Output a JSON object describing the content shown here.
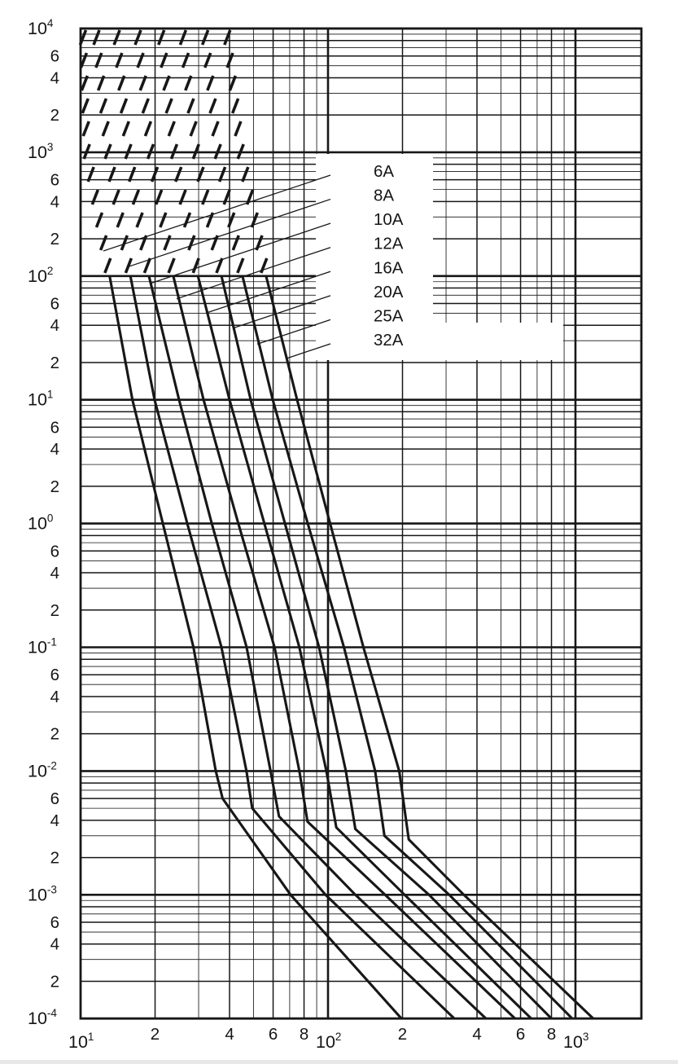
{
  "figure": {
    "kind": "scanned time-current characteristic chart",
    "background_color": "#ffffff",
    "ink_color": "#171717"
  },
  "legend": {
    "items": [
      "6A",
      "8A",
      "10A",
      "12A",
      "16A",
      "20A",
      "25A",
      "32A"
    ]
  },
  "chart_data": {
    "type": "line",
    "title": "",
    "xlabel": "",
    "ylabel": "",
    "x_axis": {
      "scale": "log",
      "major_tick_labels": [
        "10^1",
        "10^2",
        "10^3"
      ],
      "minor_tick_labels": [
        "2",
        "4",
        "6",
        "8"
      ],
      "range": [
        10,
        1950
      ]
    },
    "y_axis": {
      "scale": "log",
      "major_tick_labels": [
        "10^4",
        "10^3",
        "10^2",
        "10^1",
        "10^0",
        "10^-1",
        "10^-2",
        "10^-3",
        "10^-4"
      ],
      "minor_tick_labels": [
        "6",
        "4",
        "2"
      ],
      "range": [
        0.0001,
        10000
      ]
    },
    "grid": "log-log, minor lines 2-9 each decade",
    "dashed_above_seconds": 100,
    "series": [
      {
        "name": "6A",
        "points": [
          [
            10.2,
            10000
          ],
          [
            10.6,
            1000
          ],
          [
            13.1,
            100
          ],
          [
            16.2,
            10
          ],
          [
            21.5,
            1
          ],
          [
            28.6,
            0.1
          ],
          [
            35.2,
            0.01
          ],
          [
            37.5,
            0.006
          ],
          [
            70.6,
            0.001
          ],
          [
            198,
            0.0001
          ]
        ]
      },
      {
        "name": "8A",
        "points": [
          [
            11.5,
            10000
          ],
          [
            12.9,
            1000
          ],
          [
            15.9,
            100
          ],
          [
            19.9,
            10
          ],
          [
            27.0,
            1
          ],
          [
            37.1,
            0.1
          ],
          [
            46.8,
            0.01
          ],
          [
            49.4,
            0.005
          ],
          [
            97.7,
            0.001
          ],
          [
            324,
            0.0001
          ]
        ]
      },
      {
        "name": "10A",
        "points": [
          [
            13.9,
            10000
          ],
          [
            15.6,
            1000
          ],
          [
            18.9,
            100
          ],
          [
            25.0,
            10
          ],
          [
            33.9,
            1
          ],
          [
            46.9,
            0.1
          ],
          [
            58.6,
            0.01
          ],
          [
            63.4,
            0.0043
          ],
          [
            129,
            0.001
          ],
          [
            435,
            0.0001
          ]
        ]
      },
      {
        "name": "12A",
        "points": [
          [
            16.9,
            10000
          ],
          [
            19.2,
            1000
          ],
          [
            23.7,
            100
          ],
          [
            31.4,
            10
          ],
          [
            43.4,
            1
          ],
          [
            60.8,
            0.1
          ],
          [
            76.6,
            0.01
          ],
          [
            82.6,
            0.0039
          ],
          [
            170,
            0.001
          ],
          [
            570,
            0.0001
          ]
        ]
      },
      {
        "name": "16A",
        "points": [
          [
            21.0,
            10000
          ],
          [
            23.9,
            1000
          ],
          [
            29.8,
            100
          ],
          [
            40.0,
            10
          ],
          [
            55.3,
            1
          ],
          [
            76.6,
            0.1
          ],
          [
            98.5,
            0.01
          ],
          [
            108,
            0.0035
          ],
          [
            204,
            0.001
          ],
          [
            663,
            0.0001
          ]
        ]
      },
      {
        "name": "20A",
        "points": [
          [
            25.7,
            10000
          ],
          [
            29.3,
            1000
          ],
          [
            37.1,
            100
          ],
          [
            48.7,
            10
          ],
          [
            67.0,
            1
          ],
          [
            92.0,
            0.1
          ],
          [
            118,
            0.01
          ],
          [
            129,
            0.0034
          ],
          [
            256,
            0.001
          ],
          [
            800,
            0.0001
          ]
        ]
      },
      {
        "name": "25A",
        "points": [
          [
            31.6,
            10000
          ],
          [
            35.9,
            1000
          ],
          [
            45.1,
            100
          ],
          [
            59.8,
            10
          ],
          [
            82.8,
            1
          ],
          [
            116,
            0.1
          ],
          [
            155,
            0.01
          ],
          [
            169,
            0.003
          ],
          [
            309,
            0.001
          ],
          [
            970,
            0.0001
          ]
        ]
      },
      {
        "name": "32A",
        "points": [
          [
            38.8,
            10000
          ],
          [
            44.4,
            1000
          ],
          [
            56.2,
            100
          ],
          [
            75.0,
            10
          ],
          [
            102,
            1
          ],
          [
            139,
            0.1
          ],
          [
            194,
            0.01
          ],
          [
            212,
            0.0028
          ],
          [
            354,
            0.001
          ],
          [
            1180,
            0.0001
          ]
        ]
      }
    ]
  }
}
